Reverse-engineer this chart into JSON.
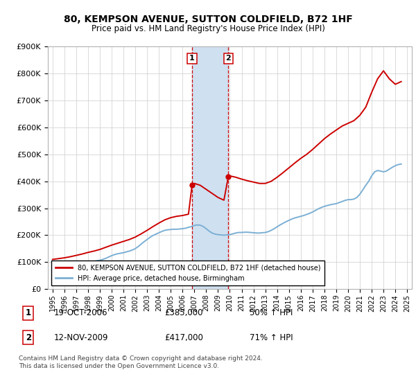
{
  "title": "80, KEMPSON AVENUE, SUTTON COLDFIELD, B72 1HF",
  "subtitle": "Price paid vs. HM Land Registry's House Price Index (HPI)",
  "ylim": [
    0,
    900000
  ],
  "yticks": [
    0,
    100000,
    200000,
    300000,
    400000,
    500000,
    600000,
    700000,
    800000,
    900000
  ],
  "ytick_labels": [
    "£0",
    "£100K",
    "£200K",
    "£300K",
    "£400K",
    "£500K",
    "£600K",
    "£700K",
    "£800K",
    "£900K"
  ],
  "xlim_start": 1994.6,
  "xlim_end": 2025.4,
  "sale1_x": 2006.8,
  "sale1_y": 385000,
  "sale1_label": "19-OCT-2006",
  "sale1_price": "£385,000",
  "sale1_hpi": "50% ↑ HPI",
  "sale2_x": 2009.87,
  "sale2_y": 417000,
  "sale2_label": "12-NOV-2009",
  "sale2_price": "£417,000",
  "sale2_hpi": "71% ↑ HPI",
  "red_line_color": "#cc0000",
  "blue_line_color": "#7bafd4",
  "highlight_color": "#cfe0f0",
  "legend_label_red": "80, KEMPSON AVENUE, SUTTON COLDFIELD, B72 1HF (detached house)",
  "legend_label_blue": "HPI: Average price, detached house, Birmingham",
  "footnote1": "Contains HM Land Registry data © Crown copyright and database right 2024.",
  "footnote2": "This data is licensed under the Open Government Licence v3.0.",
  "hpi_x": [
    1995.0,
    1995.25,
    1995.5,
    1995.75,
    1996.0,
    1996.25,
    1996.5,
    1996.75,
    1997.0,
    1997.25,
    1997.5,
    1997.75,
    1998.0,
    1998.25,
    1998.5,
    1998.75,
    1999.0,
    1999.25,
    1999.5,
    1999.75,
    2000.0,
    2000.25,
    2000.5,
    2000.75,
    2001.0,
    2001.25,
    2001.5,
    2001.75,
    2002.0,
    2002.25,
    2002.5,
    2002.75,
    2003.0,
    2003.25,
    2003.5,
    2003.75,
    2004.0,
    2004.25,
    2004.5,
    2004.75,
    2005.0,
    2005.25,
    2005.5,
    2005.75,
    2006.0,
    2006.25,
    2006.5,
    2006.75,
    2007.0,
    2007.25,
    2007.5,
    2007.75,
    2008.0,
    2008.25,
    2008.5,
    2008.75,
    2009.0,
    2009.25,
    2009.5,
    2009.75,
    2010.0,
    2010.25,
    2010.5,
    2010.75,
    2011.0,
    2011.25,
    2011.5,
    2011.75,
    2012.0,
    2012.25,
    2012.5,
    2012.75,
    2013.0,
    2013.25,
    2013.5,
    2013.75,
    2014.0,
    2014.25,
    2014.5,
    2014.75,
    2015.0,
    2015.25,
    2015.5,
    2015.75,
    2016.0,
    2016.25,
    2016.5,
    2016.75,
    2017.0,
    2017.25,
    2017.5,
    2017.75,
    2018.0,
    2018.25,
    2018.5,
    2018.75,
    2019.0,
    2019.25,
    2019.5,
    2019.75,
    2020.0,
    2020.25,
    2020.5,
    2020.75,
    2021.0,
    2021.25,
    2021.5,
    2021.75,
    2022.0,
    2022.25,
    2022.5,
    2022.75,
    2023.0,
    2023.25,
    2023.5,
    2023.75,
    2024.0,
    2024.25,
    2024.5
  ],
  "hpi_y": [
    75000,
    76000,
    77000,
    78000,
    79000,
    80000,
    82000,
    84000,
    87000,
    90000,
    93000,
    96000,
    99000,
    101000,
    103000,
    105000,
    107000,
    110000,
    114000,
    119000,
    124000,
    128000,
    131000,
    133000,
    135000,
    138000,
    141000,
    145000,
    150000,
    158000,
    167000,
    176000,
    184000,
    192000,
    199000,
    204000,
    209000,
    214000,
    218000,
    220000,
    221000,
    222000,
    222000,
    223000,
    224000,
    226000,
    229000,
    232000,
    236000,
    238000,
    237000,
    232000,
    224000,
    215000,
    208000,
    204000,
    202000,
    201000,
    200000,
    201000,
    202000,
    205000,
    208000,
    210000,
    210000,
    211000,
    211000,
    210000,
    209000,
    208000,
    208000,
    209000,
    210000,
    213000,
    218000,
    224000,
    231000,
    238000,
    244000,
    250000,
    255000,
    260000,
    264000,
    267000,
    270000,
    273000,
    277000,
    281000,
    286000,
    292000,
    298000,
    303000,
    307000,
    310000,
    313000,
    315000,
    317000,
    321000,
    325000,
    329000,
    332000,
    332000,
    334000,
    340000,
    352000,
    368000,
    385000,
    400000,
    420000,
    435000,
    440000,
    438000,
    435000,
    438000,
    445000,
    452000,
    458000,
    462000,
    464000
  ],
  "red_x": [
    1995.0,
    1995.5,
    1996.0,
    1996.5,
    1997.0,
    1997.5,
    1998.0,
    1998.5,
    1999.0,
    1999.5,
    2000.0,
    2000.5,
    2001.0,
    2001.5,
    2002.0,
    2002.5,
    2003.0,
    2003.5,
    2004.0,
    2004.5,
    2005.0,
    2005.5,
    2006.0,
    2006.5,
    2006.8,
    2007.0,
    2007.5,
    2008.0,
    2008.5,
    2009.0,
    2009.5,
    2009.87,
    2010.0,
    2010.5,
    2011.0,
    2011.5,
    2012.0,
    2012.5,
    2013.0,
    2013.5,
    2014.0,
    2014.5,
    2015.0,
    2015.5,
    2016.0,
    2016.5,
    2017.0,
    2017.5,
    2018.0,
    2018.5,
    2019.0,
    2019.5,
    2020.0,
    2020.5,
    2021.0,
    2021.5,
    2022.0,
    2022.5,
    2023.0,
    2023.5,
    2024.0,
    2024.5
  ],
  "red_y": [
    110000,
    113000,
    116000,
    120000,
    125000,
    130000,
    136000,
    141000,
    147000,
    155000,
    163000,
    170000,
    177000,
    184000,
    193000,
    205000,
    218000,
    232000,
    245000,
    257000,
    265000,
    270000,
    273000,
    278000,
    385000,
    392000,
    385000,
    370000,
    355000,
    340000,
    330000,
    417000,
    420000,
    415000,
    408000,
    402000,
    397000,
    392000,
    392000,
    400000,
    415000,
    432000,
    450000,
    468000,
    485000,
    500000,
    518000,
    538000,
    558000,
    575000,
    590000,
    605000,
    615000,
    625000,
    645000,
    675000,
    730000,
    780000,
    810000,
    780000,
    760000,
    770000
  ]
}
